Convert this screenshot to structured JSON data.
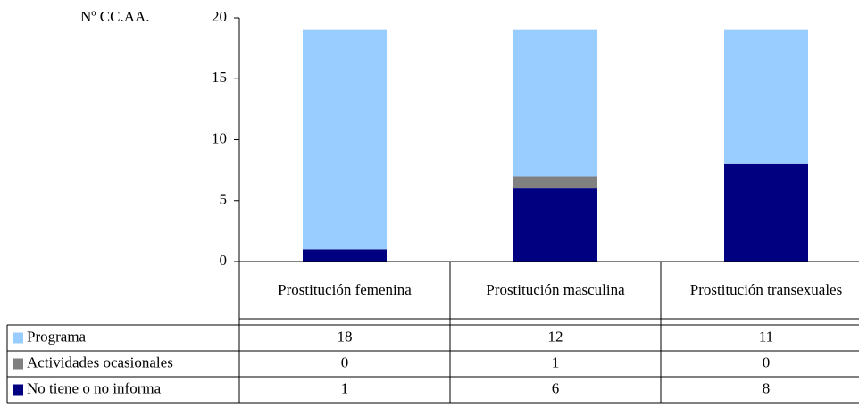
{
  "chart_data": {
    "type": "bar",
    "stacked": true,
    "y_label": "Nº CC.AA.",
    "categories": [
      "Prostitución femenina",
      "Prostitución masculina",
      "Prostitución transexuales"
    ],
    "series": [
      {
        "name": "Programa",
        "color": "#99ccff",
        "values": [
          18,
          12,
          11
        ]
      },
      {
        "name": "Actividades ocasionales",
        "color": "#808080",
        "values": [
          0,
          1,
          0
        ]
      },
      {
        "name": "No tiene o no informa",
        "color": "#000080",
        "values": [
          1,
          6,
          8
        ]
      }
    ],
    "ylim": [
      0,
      20
    ],
    "yticks": [
      0,
      5,
      10,
      15,
      20
    ],
    "grid": false
  }
}
